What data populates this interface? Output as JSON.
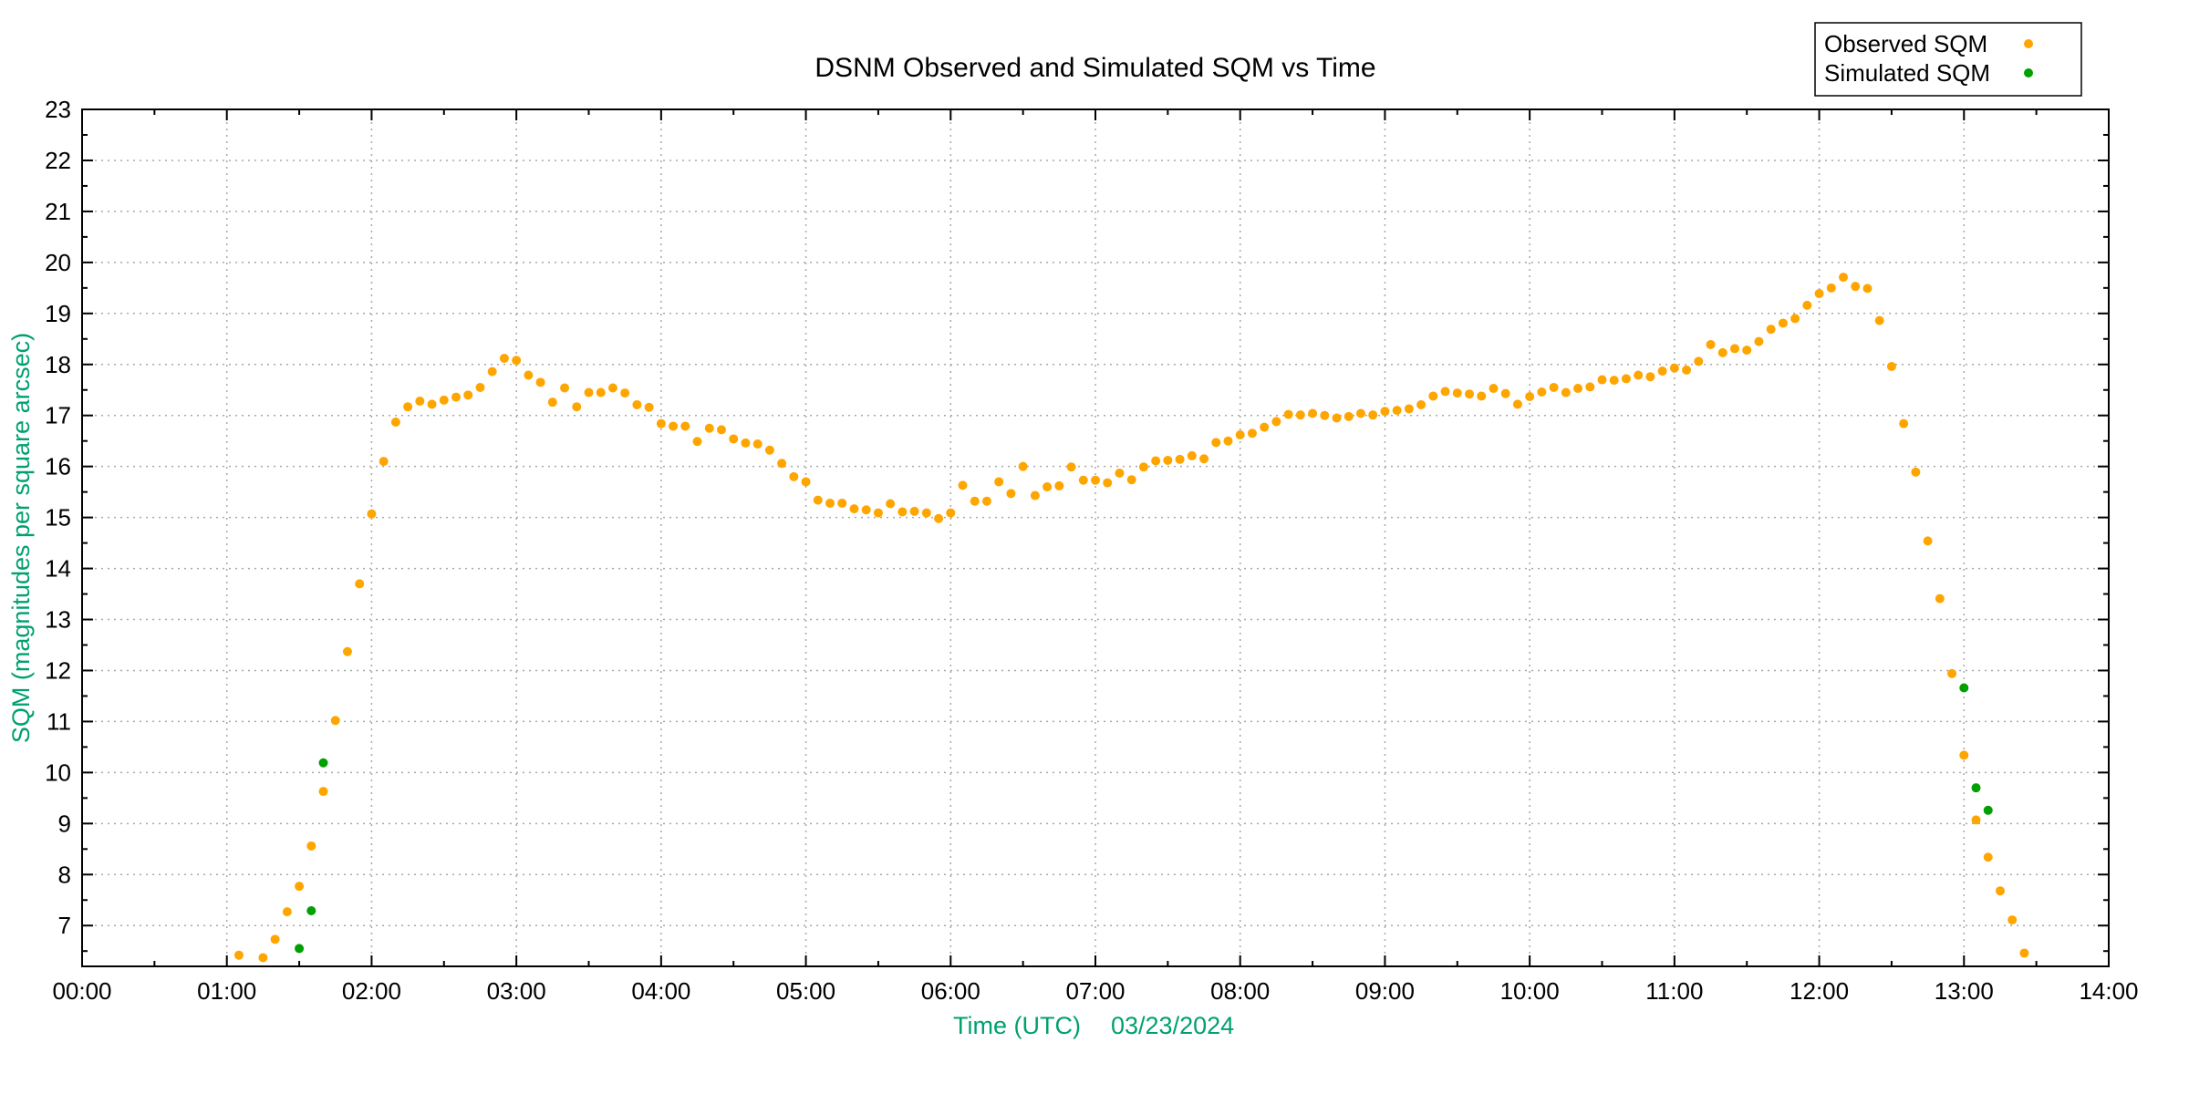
{
  "chart_data": {
    "type": "scatter",
    "title": "DSNM Observed and Simulated SQM vs Time",
    "xlabel": "Time (UTC)",
    "date_label": "03/23/2024",
    "ylabel": "SQM (magnitudes per square arcsec)",
    "axis_label_color": "#00a070",
    "grid": true,
    "grid_color": "#a8a8a8",
    "legend_position": "top-right",
    "xlim_hours": [
      0,
      14
    ],
    "ylim": [
      6.2,
      23
    ],
    "x_major_step_hours": 1,
    "x_minor_step_hours": 0.5,
    "y_major_step": 1,
    "y_minor_step": 0.5,
    "xtick_labels": [
      "00:00",
      "01:00",
      "02:00",
      "03:00",
      "04:00",
      "05:00",
      "06:00",
      "07:00",
      "08:00",
      "09:00",
      "10:00",
      "11:00",
      "12:00",
      "13:00",
      "14:00"
    ],
    "yticks": [
      7,
      8,
      9,
      10,
      11,
      12,
      13,
      14,
      15,
      16,
      17,
      18,
      19,
      20,
      21,
      22,
      23
    ],
    "series": [
      {
        "name": "Observed SQM",
        "color": "#ffa500",
        "points": [
          [
            "01:05",
            6.42
          ],
          [
            "01:15",
            6.37
          ],
          [
            "01:20",
            6.73
          ],
          [
            "01:25",
            7.27
          ],
          [
            "01:30",
            7.77
          ],
          [
            "01:35",
            8.56
          ],
          [
            "01:40",
            9.63
          ],
          [
            "01:45",
            11.02
          ],
          [
            "01:50",
            12.37
          ],
          [
            "01:55",
            13.7
          ],
          [
            "02:00",
            15.07
          ],
          [
            "02:05",
            16.1
          ],
          [
            "02:10",
            16.87
          ],
          [
            "02:15",
            17.17
          ],
          [
            "02:20",
            17.28
          ],
          [
            "02:25",
            17.22
          ],
          [
            "02:30",
            17.3
          ],
          [
            "02:35",
            17.36
          ],
          [
            "02:40",
            17.4
          ],
          [
            "02:45",
            17.55
          ],
          [
            "02:50",
            17.86
          ],
          [
            "02:55",
            18.12
          ],
          [
            "03:00",
            18.08
          ],
          [
            "03:05",
            17.79
          ],
          [
            "03:10",
            17.65
          ],
          [
            "03:15",
            17.26
          ],
          [
            "03:20",
            17.54
          ],
          [
            "03:25",
            17.17
          ],
          [
            "03:30",
            17.45
          ],
          [
            "03:35",
            17.45
          ],
          [
            "03:40",
            17.54
          ],
          [
            "03:45",
            17.44
          ],
          [
            "03:50",
            17.21
          ],
          [
            "03:55",
            17.16
          ],
          [
            "04:00",
            16.84
          ],
          [
            "04:05",
            16.79
          ],
          [
            "04:10",
            16.79
          ],
          [
            "04:15",
            16.49
          ],
          [
            "04:20",
            16.75
          ],
          [
            "04:25",
            16.72
          ],
          [
            "04:30",
            16.54
          ],
          [
            "04:35",
            16.46
          ],
          [
            "04:40",
            16.44
          ],
          [
            "04:45",
            16.32
          ],
          [
            "04:50",
            16.06
          ],
          [
            "04:55",
            15.8
          ],
          [
            "05:00",
            15.7
          ],
          [
            "05:05",
            15.34
          ],
          [
            "05:10",
            15.28
          ],
          [
            "05:15",
            15.28
          ],
          [
            "05:20",
            15.17
          ],
          [
            "05:25",
            15.15
          ],
          [
            "05:30",
            15.09
          ],
          [
            "05:35",
            15.27
          ],
          [
            "05:40",
            15.11
          ],
          [
            "05:45",
            15.12
          ],
          [
            "05:50",
            15.09
          ],
          [
            "05:55",
            14.98
          ],
          [
            "06:00",
            15.09
          ],
          [
            "06:05",
            15.63
          ],
          [
            "06:10",
            15.32
          ],
          [
            "06:15",
            15.32
          ],
          [
            "06:20",
            15.7
          ],
          [
            "06:25",
            15.47
          ],
          [
            "06:30",
            16.0
          ],
          [
            "06:35",
            15.43
          ],
          [
            "06:40",
            15.6
          ],
          [
            "06:45",
            15.62
          ],
          [
            "06:50",
            15.99
          ],
          [
            "06:55",
            15.73
          ],
          [
            "07:00",
            15.73
          ],
          [
            "07:05",
            15.68
          ],
          [
            "07:10",
            15.87
          ],
          [
            "07:15",
            15.74
          ],
          [
            "07:20",
            15.99
          ],
          [
            "07:25",
            16.11
          ],
          [
            "07:30",
            16.12
          ],
          [
            "07:35",
            16.14
          ],
          [
            "07:40",
            16.21
          ],
          [
            "07:45",
            16.15
          ],
          [
            "07:50",
            16.47
          ],
          [
            "07:55",
            16.5
          ],
          [
            "08:00",
            16.62
          ],
          [
            "08:05",
            16.65
          ],
          [
            "08:10",
            16.77
          ],
          [
            "08:15",
            16.88
          ],
          [
            "08:20",
            17.02
          ],
          [
            "08:25",
            17.01
          ],
          [
            "08:30",
            17.04
          ],
          [
            "08:35",
            17.0
          ],
          [
            "08:40",
            16.95
          ],
          [
            "08:45",
            16.98
          ],
          [
            "08:50",
            17.04
          ],
          [
            "08:55",
            17.01
          ],
          [
            "09:00",
            17.08
          ],
          [
            "09:05",
            17.1
          ],
          [
            "09:10",
            17.13
          ],
          [
            "09:15",
            17.21
          ],
          [
            "09:20",
            17.38
          ],
          [
            "09:25",
            17.47
          ],
          [
            "09:30",
            17.44
          ],
          [
            "09:35",
            17.42
          ],
          [
            "09:40",
            17.38
          ],
          [
            "09:45",
            17.53
          ],
          [
            "09:50",
            17.43
          ],
          [
            "09:55",
            17.22
          ],
          [
            "10:00",
            17.37
          ],
          [
            "10:05",
            17.46
          ],
          [
            "10:10",
            17.55
          ],
          [
            "10:15",
            17.45
          ],
          [
            "10:20",
            17.53
          ],
          [
            "10:25",
            17.56
          ],
          [
            "10:30",
            17.7
          ],
          [
            "10:35",
            17.69
          ],
          [
            "10:40",
            17.72
          ],
          [
            "10:45",
            17.79
          ],
          [
            "10:50",
            17.76
          ],
          [
            "10:55",
            17.87
          ],
          [
            "11:00",
            17.93
          ],
          [
            "11:05",
            17.89
          ],
          [
            "11:10",
            18.06
          ],
          [
            "11:15",
            18.39
          ],
          [
            "11:20",
            18.23
          ],
          [
            "11:25",
            18.31
          ],
          [
            "11:30",
            18.28
          ],
          [
            "11:35",
            18.45
          ],
          [
            "11:40",
            18.69
          ],
          [
            "11:45",
            18.81
          ],
          [
            "11:50",
            18.9
          ],
          [
            "11:55",
            19.16
          ],
          [
            "12:00",
            19.39
          ],
          [
            "12:05",
            19.5
          ],
          [
            "12:10",
            19.71
          ],
          [
            "12:15",
            19.53
          ],
          [
            "12:20",
            19.49
          ],
          [
            "12:25",
            18.86
          ],
          [
            "12:30",
            17.96
          ],
          [
            "12:35",
            16.84
          ],
          [
            "12:40",
            15.89
          ],
          [
            "12:45",
            14.54
          ],
          [
            "12:50",
            13.41
          ],
          [
            "12:55",
            11.94
          ],
          [
            "13:00",
            10.34
          ],
          [
            "13:05",
            9.07
          ],
          [
            "13:10",
            8.34
          ],
          [
            "13:15",
            7.68
          ],
          [
            "13:20",
            7.11
          ],
          [
            "13:25",
            6.46
          ]
        ]
      },
      {
        "name": "Simulated SQM",
        "color": "#00a000",
        "points": [
          [
            "01:30",
            6.55
          ],
          [
            "01:35",
            7.29
          ],
          [
            "01:40",
            10.19
          ],
          [
            "13:00",
            11.66
          ],
          [
            "13:05",
            9.7
          ],
          [
            "13:10",
            9.26
          ]
        ]
      }
    ]
  }
}
